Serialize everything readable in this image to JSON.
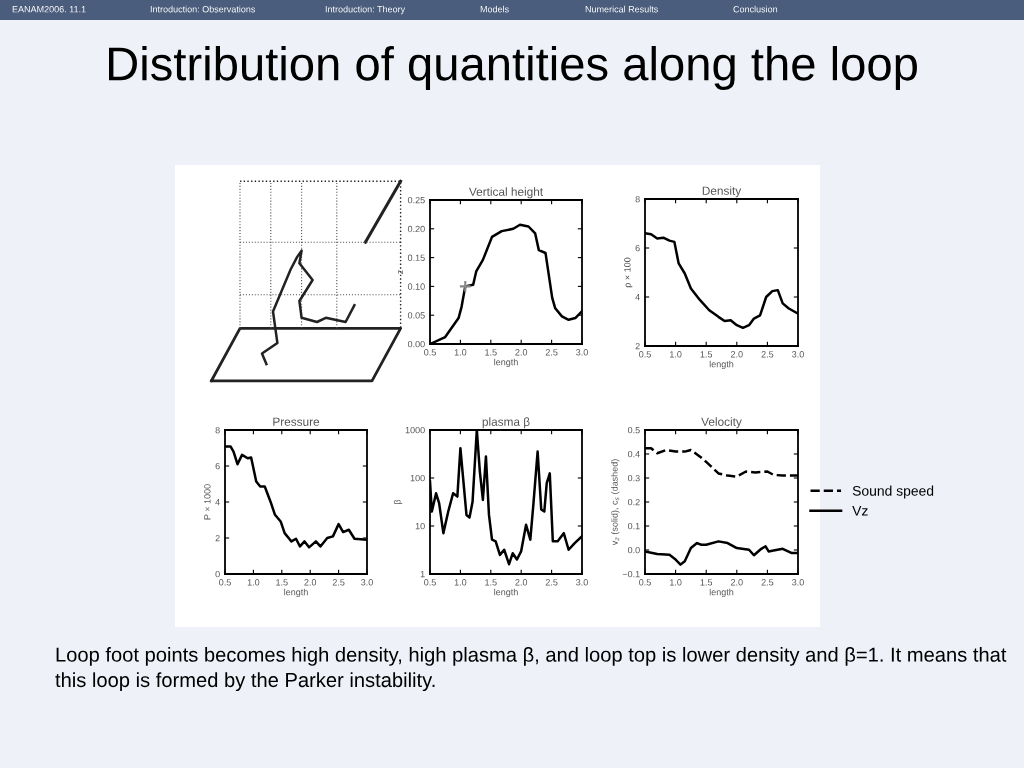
{
  "chart_data": [
    {
      "type": "other",
      "title": "Distribution of quantities along the loop",
      "annotations": [
        "EANAM2006. 11.1",
        "Introduction: Observations",
        "Introduction: Theory",
        "Models",
        "Numerical Results",
        "Conclusion",
        "Loop foot points becomes high density, high plasma β, and loop top is lower density and β=1. It means that this loop is formed by the Parker instability."
      ]
    },
    {
      "type": "line",
      "title": "Vertical height",
      "xlabel": "length",
      "ylabel": "z",
      "xlim": [
        0.5,
        3.0
      ],
      "xticks": [
        {
          "value": 0.5,
          "label": "0.5"
        },
        {
          "value": 1.0,
          "label": "1.0"
        },
        {
          "value": 1.5,
          "label": "1.5"
        },
        {
          "value": 2.0,
          "label": "2.0"
        },
        {
          "value": 2.5,
          "label": "2.5"
        },
        {
          "value": 3.0,
          "label": "3.0"
        }
      ],
      "ylim": [
        0,
        0.25
      ],
      "yticks": [
        {
          "value": 0,
          "label": "0.00"
        },
        {
          "value": 0.05,
          "label": "0.05"
        },
        {
          "value": 0.1,
          "label": "0.10"
        },
        {
          "value": 0.15,
          "label": "0.15"
        },
        {
          "value": 0.2,
          "label": "0.20"
        },
        {
          "value": 0.25,
          "label": "0.25"
        }
      ],
      "series": [
        {
          "color": "#000000",
          "line_style": "solid",
          "x": [
            0.5,
            0.75,
            0.97,
            1.02,
            1.08,
            1.21,
            1.26,
            1.37,
            1.52,
            1.68,
            1.87,
            1.98,
            2.12,
            2.23,
            2.29,
            2.4,
            2.51,
            2.56,
            2.67,
            2.78,
            2.89,
            3.0
          ],
          "values": [
            0.0,
            0.012,
            0.045,
            0.065,
            0.1,
            0.103,
            0.126,
            0.146,
            0.186,
            0.196,
            0.2,
            0.207,
            0.204,
            0.192,
            0.163,
            0.158,
            0.08,
            0.062,
            0.048,
            0.042,
            0.045,
            0.057
          ]
        },
        {
          "type": "scatter",
          "marker": "cross",
          "color": "#888888",
          "x": [
            1.08
          ],
          "values": [
            0.1
          ]
        }
      ]
    },
    {
      "type": "line",
      "title": "Density",
      "xlabel": "length",
      "ylabel": "ρ × 100",
      "xlim": [
        0.5,
        3.0
      ],
      "xticks": [
        {
          "value": 0.5,
          "label": "0.5"
        },
        {
          "value": 1.0,
          "label": "1.0"
        },
        {
          "value": 1.5,
          "label": "1.5"
        },
        {
          "value": 2.0,
          "label": "2.0"
        },
        {
          "value": 2.5,
          "label": "2.5"
        },
        {
          "value": 3.0,
          "label": "3.0"
        }
      ],
      "ylim": [
        2,
        8
      ],
      "yticks": [
        2,
        4,
        6,
        8
      ],
      "series": [
        {
          "color": "#000000",
          "line_style": "solid",
          "x": [
            0.5,
            0.6,
            0.7,
            0.8,
            0.9,
            0.98,
            1.05,
            1.15,
            1.25,
            1.4,
            1.55,
            1.7,
            1.8,
            1.9,
            2.0,
            2.1,
            2.2,
            2.28,
            2.38,
            2.48,
            2.58,
            2.67,
            2.75,
            2.85,
            3.0
          ],
          "values": [
            6.6,
            6.56,
            6.39,
            6.42,
            6.3,
            6.25,
            5.37,
            4.96,
            4.35,
            3.87,
            3.46,
            3.19,
            3.02,
            3.05,
            2.85,
            2.74,
            2.85,
            3.12,
            3.25,
            4.0,
            4.24,
            4.28,
            3.74,
            3.53,
            3.32
          ]
        }
      ]
    },
    {
      "type": "line",
      "title": "Pressure",
      "xlabel": "length",
      "ylabel": "P × 1000",
      "xlim": [
        0.5,
        3.0
      ],
      "xticks": [
        {
          "value": 0.5,
          "label": "0.5"
        },
        {
          "value": 1.0,
          "label": "1.0"
        },
        {
          "value": 1.5,
          "label": "1.5"
        },
        {
          "value": 2.0,
          "label": "2.0"
        },
        {
          "value": 2.5,
          "label": "2.5"
        },
        {
          "value": 3.0,
          "label": "3.0"
        }
      ],
      "ylim": [
        0,
        8
      ],
      "yticks": [
        0,
        2,
        4,
        6,
        8
      ],
      "series": [
        {
          "color": "#000000",
          "line_style": "solid",
          "x": [
            0.5,
            0.6,
            0.65,
            0.72,
            0.8,
            0.9,
            0.96,
            1.05,
            1.12,
            1.2,
            1.3,
            1.38,
            1.48,
            1.55,
            1.67,
            1.75,
            1.82,
            1.9,
            1.98,
            2.1,
            2.18,
            2.3,
            2.4,
            2.5,
            2.58,
            2.68,
            2.78,
            3.0
          ],
          "values": [
            7.08,
            7.08,
            6.8,
            6.1,
            6.62,
            6.43,
            6.47,
            5.14,
            4.86,
            4.86,
            4.03,
            3.29,
            2.92,
            2.27,
            1.81,
            1.96,
            1.53,
            1.81,
            1.48,
            1.81,
            1.53,
            2.0,
            2.09,
            2.77,
            2.33,
            2.46,
            1.96,
            1.9
          ]
        }
      ]
    },
    {
      "type": "line",
      "title": "plasma β",
      "xlabel": "length",
      "ylabel": "β",
      "log": "y",
      "xlim": [
        0.5,
        3.0
      ],
      "xticks": [
        {
          "value": 0.5,
          "label": "0.5"
        },
        {
          "value": 1.0,
          "label": "1.0"
        },
        {
          "value": 1.5,
          "label": "1.5"
        },
        {
          "value": 2.0,
          "label": "2.0"
        },
        {
          "value": 2.5,
          "label": "2.5"
        },
        {
          "value": 3.0,
          "label": "3.0"
        }
      ],
      "ylim": [
        1,
        1000
      ],
      "yticks": [
        1,
        10,
        100,
        1000
      ],
      "series": [
        {
          "color": "#000000",
          "line_style": "solid",
          "x": [
            0.5,
            0.53,
            0.6,
            0.65,
            0.72,
            0.8,
            0.88,
            0.95,
            1.0,
            1.06,
            1.1,
            1.15,
            1.2,
            1.27,
            1.32,
            1.37,
            1.42,
            1.47,
            1.52,
            1.58,
            1.65,
            1.72,
            1.8,
            1.86,
            1.93,
            2.0,
            2.08,
            2.15,
            2.2,
            2.27,
            2.33,
            2.38,
            2.42,
            2.47,
            2.52,
            2.6,
            2.7,
            2.78,
            2.88,
            3.0
          ],
          "values": [
            85,
            20,
            48,
            30,
            7.1,
            20,
            48,
            41,
            417,
            61,
            17,
            15,
            32,
            1000,
            136,
            35,
            280,
            17,
            5.2,
            4.8,
            2.5,
            3.2,
            1.6,
            2.7,
            2.0,
            3.0,
            10.6,
            5.2,
            28,
            355,
            22,
            20,
            78,
            125,
            4.8,
            4.8,
            7.1,
            3.2,
            4.4,
            6.1
          ]
        }
      ]
    },
    {
      "type": "line",
      "title": "Velocity",
      "xlabel": "length",
      "ylabel": "v$_{z}$ (solid), c$_{s}$ (dashed)",
      "legend": "right",
      "xlim": [
        0.5,
        3.0
      ],
      "xticks": [
        {
          "value": 0.5,
          "label": "0.5"
        },
        {
          "value": 1.0,
          "label": "1.0"
        },
        {
          "value": 1.5,
          "label": "1.5"
        },
        {
          "value": 2.0,
          "label": "2.0"
        },
        {
          "value": 2.5,
          "label": "2.5"
        },
        {
          "value": 3.0,
          "label": "3.0"
        }
      ],
      "ylim": [
        -0.1,
        0.5
      ],
      "yticks": [
        {
          "value": -0.1,
          "label": "−0.1"
        },
        {
          "value": 0.0,
          "label": "0.0"
        },
        {
          "value": 0.1,
          "label": "0.1"
        },
        {
          "value": 0.2,
          "label": "0.2"
        },
        {
          "value": 0.3,
          "label": "0.3"
        },
        {
          "value": 0.4,
          "label": "0.4"
        },
        {
          "value": 0.5,
          "label": "0.5"
        }
      ],
      "series": [
        {
          "name": "Sound speed",
          "color": "#000000",
          "line_style": "dashed",
          "x": [
            0.5,
            0.6,
            0.7,
            0.85,
            1.0,
            1.15,
            1.25,
            1.4,
            1.5,
            1.7,
            1.85,
            2.0,
            2.15,
            2.3,
            2.5,
            2.6,
            2.75,
            3.0
          ],
          "values": [
            0.424,
            0.424,
            0.403,
            0.417,
            0.41,
            0.41,
            0.417,
            0.389,
            0.367,
            0.319,
            0.31,
            0.306,
            0.327,
            0.323,
            0.327,
            0.313,
            0.31,
            0.31
          ]
        },
        {
          "name": "Vz",
          "color": "#000000",
          "line_style": "solid",
          "x": [
            0.5,
            0.7,
            0.9,
            1.0,
            1.08,
            1.15,
            1.25,
            1.35,
            1.42,
            1.5,
            1.7,
            1.85,
            2.0,
            2.2,
            2.28,
            2.4,
            2.47,
            2.52,
            2.6,
            2.75,
            2.9,
            3.0
          ],
          "values": [
            -0.006,
            -0.017,
            -0.02,
            -0.04,
            -0.061,
            -0.047,
            0.008,
            0.029,
            0.022,
            0.022,
            0.036,
            0.029,
            0.008,
            0.001,
            -0.022,
            0.005,
            0.015,
            -0.006,
            -0.002,
            0.005,
            -0.013,
            -0.013
          ]
        }
      ]
    }
  ]
}
